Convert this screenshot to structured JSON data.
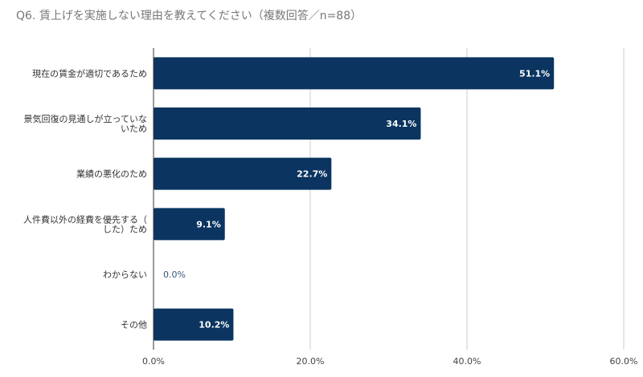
{
  "chart_data": {
    "type": "bar",
    "orientation": "horizontal",
    "title": "Q6. 賃上げを実施しない理由を教えてください（複数回答／n=88）",
    "categories": [
      [
        "現在の賃金が適切であるため"
      ],
      [
        "景気回復の見通しが立っていな",
        "いため"
      ],
      [
        "業績の悪化のため"
      ],
      [
        "人件費以外の経費を優先する（",
        "した）ため"
      ],
      [
        "わからない"
      ],
      [
        "その他"
      ]
    ],
    "values": [
      51.1,
      34.1,
      22.7,
      9.1,
      0.0,
      10.2
    ],
    "data_labels": [
      "51.1%",
      "34.1%",
      "22.7%",
      "9.1%",
      "0.0%",
      "10.2%"
    ],
    "xlim": [
      0,
      60
    ],
    "ticks": [
      0,
      20,
      40,
      60
    ],
    "tick_labels": [
      "0.0%",
      "20.0%",
      "40.0%",
      "60.0%"
    ],
    "grid": true,
    "bar_color": "#0b3560",
    "xlabel": "",
    "ylabel": ""
  }
}
